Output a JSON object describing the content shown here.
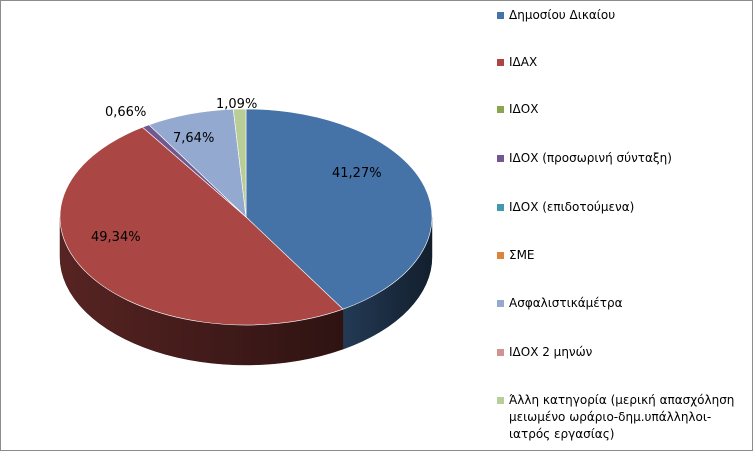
{
  "chart_data": {
    "type": "pie",
    "style": "3d",
    "legend_position": "right",
    "series": [
      {
        "name": "Δημοσίου Δικαίου",
        "value": 41.27,
        "label": "41,27%",
        "color": "#4572A7"
      },
      {
        "name": "ΙΔΑΧ",
        "value": 49.34,
        "label": "49,34%",
        "color": "#AA4643"
      },
      {
        "name": "ΙΔΟΧ",
        "value": 0,
        "label": "",
        "color": "#89A54E"
      },
      {
        "name": "ΙΔΟΧ (προσωρινή σύνταξη)",
        "value": 0.66,
        "label": "0,66%",
        "color": "#71588F"
      },
      {
        "name": "ΙΔΟΧ (επιδοτούμενα)",
        "value": 0,
        "label": "",
        "color": "#4198AF"
      },
      {
        "name": "ΣΜΕ",
        "value": 0,
        "label": "",
        "color": "#DB843D"
      },
      {
        "name": "Ασφαλιστικάμέτρα",
        "value": 7.64,
        "label": "7,64%",
        "color": "#93A9CF"
      },
      {
        "name": "ΙΔΟΧ 2 μηνών",
        "value": 0,
        "label": "",
        "color": "#D19392"
      },
      {
        "name": "Άλλη κατηγορία (μερική απασχόληση μειωμένο ωράριο-δημ.υπάλληλοι-ιατρός εργασίας)",
        "value": 1.09,
        "label": "1,09%",
        "color": "#B9CD96"
      }
    ]
  }
}
